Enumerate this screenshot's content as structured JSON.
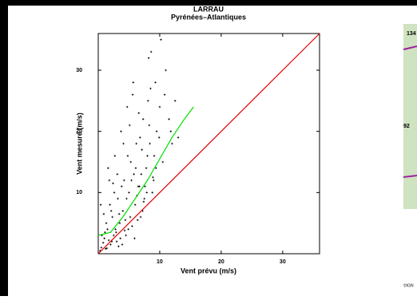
{
  "chart_data": {
    "type": "scatter",
    "title": "LARRAU",
    "subtitle": "Pyrénées–Atlantiques",
    "x_label": "Vent prévu (m/s)",
    "y_label": "Vent mesuré (m/s)",
    "xlim": [
      0,
      36
    ],
    "ylim": [
      0,
      36
    ],
    "xticks": [
      10,
      20,
      30
    ],
    "yticks": [
      10,
      20,
      30
    ],
    "point_color": "#000000",
    "points": {
      "x": [
        0.5,
        1,
        1.2,
        1.5,
        2,
        2.3,
        2.5,
        3,
        3.2,
        3.5,
        4,
        4.2,
        4.5,
        5,
        5.3,
        5.5,
        6,
        6.2,
        6.5,
        7,
        7.3,
        7.5,
        8,
        8.5,
        9,
        9.5,
        10,
        10.5,
        11,
        12,
        0.3,
        0.8,
        1.1,
        1.7,
        2.1,
        2.8,
        3.3,
        3.8,
        4.4,
        4.8,
        5.2,
        5.8,
        6.3,
        6.8,
        7.2,
        7.8,
        8.3,
        8.8,
        9.3,
        10.2,
        0.6,
        1.3,
        1.9,
        2.6,
        3.1,
        3.6,
        4.1,
        4.6,
        5.1,
        5.6,
        6.1,
        6.6,
        7.1,
        7.6,
        8.1,
        8.6,
        9.1,
        11.5,
        12.5,
        13,
        1.4,
        2.2,
        3.4,
        4.3,
        5.4,
        6.4,
        7.4,
        8.4,
        9.4,
        10.8,
        3.9,
        4.9,
        5.9,
        6.9,
        7.9,
        8.9,
        9.9,
        0.9,
        2.4,
        11.8,
        1.6,
        2.7,
        3.7,
        4.7,
        5.7,
        6.7,
        0.4,
        1.8,
        2.9,
        8.2
      ],
      "y": [
        1,
        2.5,
        0.8,
        4,
        1.5,
        6,
        3,
        2,
        9,
        5,
        7,
        12,
        3,
        10,
        15,
        4.5,
        8,
        18,
        11,
        13,
        22,
        9,
        16,
        27,
        12,
        20,
        24,
        15,
        30,
        18,
        0.5,
        1.8,
        3.5,
        2.2,
        7,
        4,
        1.2,
        11,
        5.5,
        16,
        6,
        13,
        9.5,
        19,
        7,
        14,
        21,
        10,
        28,
        35,
        3,
        5,
        8,
        10,
        13,
        2.5,
        18,
        9,
        21,
        26,
        14,
        23,
        17,
        11,
        25,
        33,
        16,
        22,
        25,
        19,
        0.9,
        2,
        6.5,
        3.8,
        12,
        5.5,
        8.5,
        18,
        14,
        26,
        1.5,
        4,
        2.5,
        6,
        10,
        12.5,
        19,
        6.5,
        11.5,
        20,
        14,
        16,
        20,
        24,
        28,
        11,
        8,
        12,
        3.5,
        32
      ]
    },
    "lines": [
      {
        "color": "#e00000",
        "x": [
          0,
          36
        ],
        "values": [
          0,
          36
        ]
      },
      {
        "color": "#00e000",
        "x": [
          0,
          2,
          4,
          6,
          8,
          10,
          12,
          14,
          15.5
        ],
        "values": [
          3,
          3.5,
          6,
          9,
          12,
          15.5,
          19,
          22,
          24
        ]
      }
    ]
  },
  "map": {
    "labels": [
      "134",
      "92"
    ],
    "credit": "©IGN"
  }
}
